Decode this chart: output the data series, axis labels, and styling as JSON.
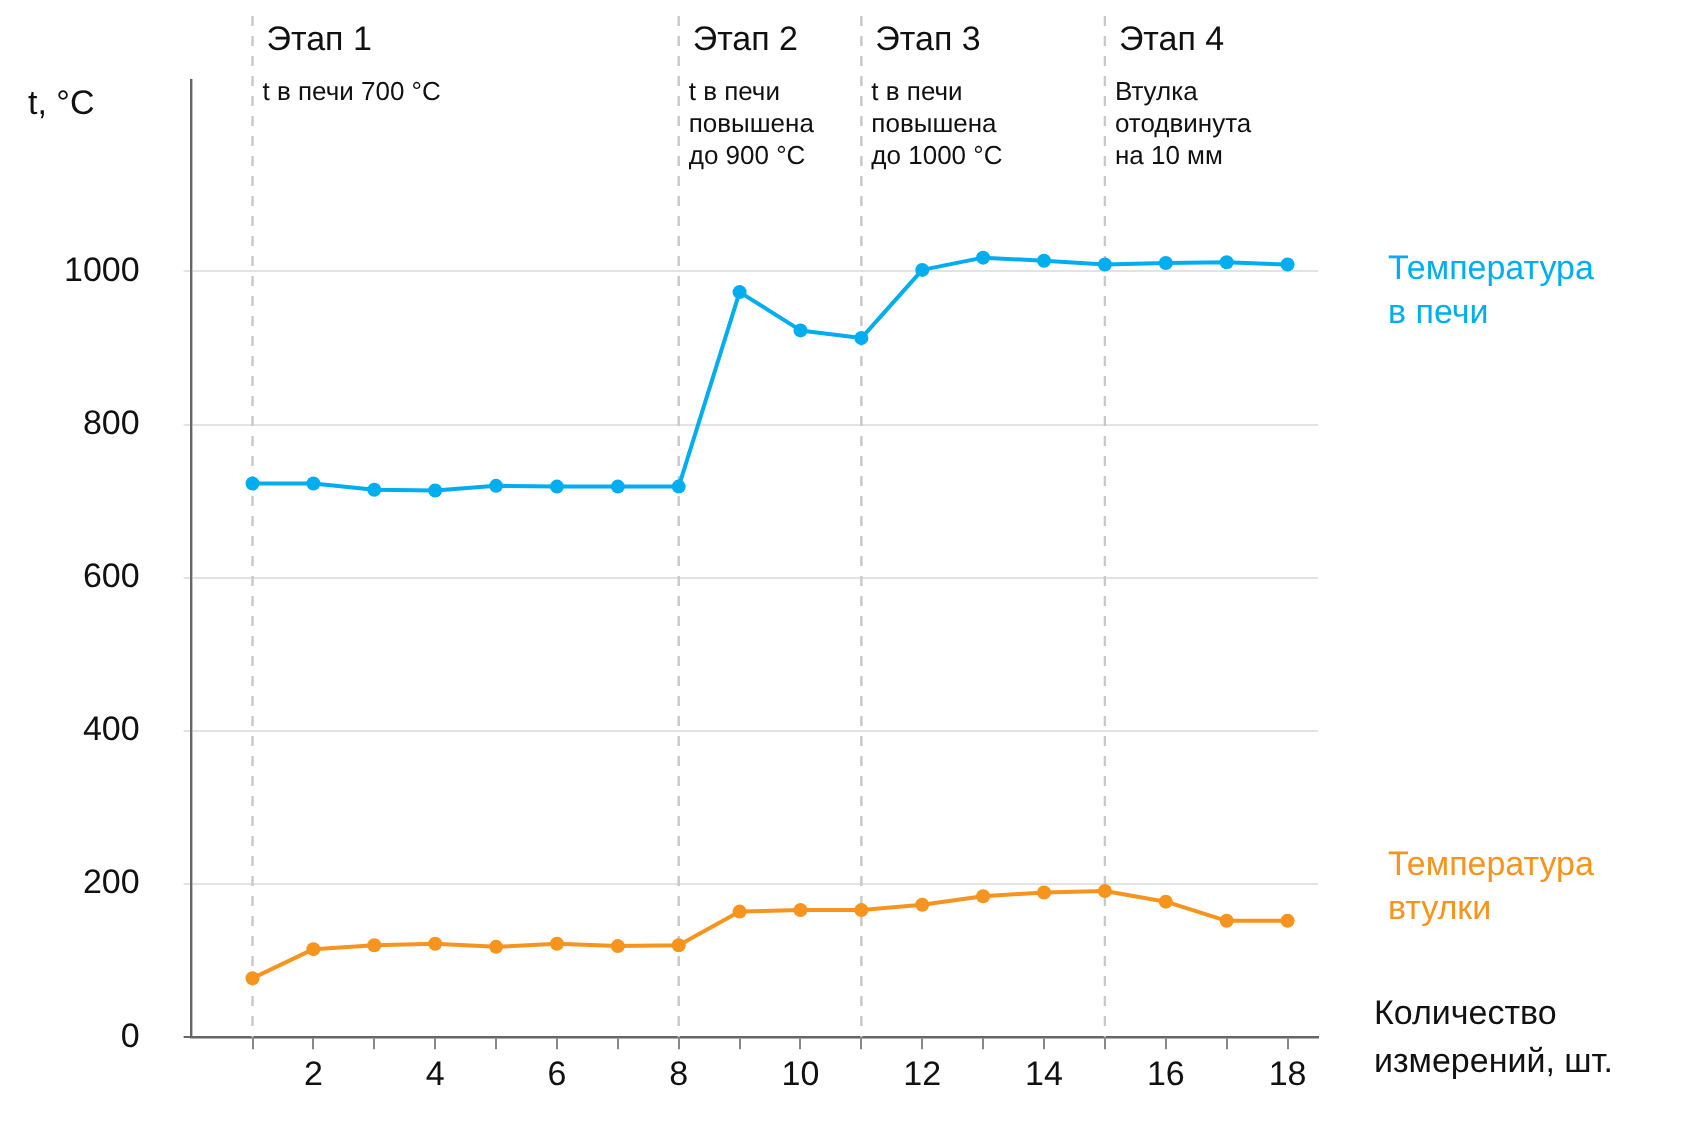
{
  "chart_data": {
    "type": "line",
    "ylabel": "t, °C",
    "xlabel": "Количество измерений, шт.",
    "x": [
      1,
      2,
      3,
      4,
      5,
      6,
      7,
      8,
      9,
      10,
      11,
      12,
      13,
      14,
      15,
      16,
      17,
      18
    ],
    "series": [
      {
        "name": "Температура в печи",
        "color": "#00aeef",
        "values": [
          723,
          723,
          715,
          714,
          720,
          719,
          719,
          719,
          973,
          923,
          913,
          1002,
          1018,
          1014,
          1009,
          1011,
          1012,
          1009
        ]
      },
      {
        "name": "Температура втулки",
        "color": "#f7941d",
        "values": [
          77,
          115,
          120,
          122,
          118,
          122,
          119,
          120,
          164,
          166,
          166,
          173,
          184,
          189,
          191,
          177,
          152,
          152
        ]
      }
    ],
    "xlim": [
      0,
      18.5
    ],
    "xticks": [
      {
        "value": 1,
        "label": null
      },
      2,
      {
        "value": 3,
        "label": null
      },
      4,
      {
        "value": 5,
        "label": null
      },
      6,
      {
        "value": 7,
        "label": null
      },
      8,
      {
        "value": 9,
        "label": null
      },
      10,
      {
        "value": 11,
        "label": null
      },
      12,
      {
        "value": 13,
        "label": null
      },
      14,
      {
        "value": 15,
        "label": null
      },
      16,
      {
        "value": 17,
        "label": null
      },
      18
    ],
    "ylim": [
      0,
      1250
    ],
    "yticks": [
      0,
      200,
      400,
      600,
      800,
      1000
    ],
    "grid": "y",
    "marker": "circle",
    "line_style": "solid",
    "legend": false,
    "ref_lines": [
      {
        "axis": "x",
        "value": 1,
        "label": "Этап 1",
        "color": "#c8c8c8",
        "line_style": "dashed"
      },
      {
        "axis": "x",
        "value": 8,
        "label": "Этап 2",
        "color": "#c8c8c8",
        "line_style": "dashed"
      },
      {
        "axis": "x",
        "value": 11,
        "label": "Этап 3",
        "color": "#c8c8c8",
        "line_style": "dashed"
      },
      {
        "axis": "x",
        "value": 15,
        "label": "Этап 4",
        "color": "#c8c8c8",
        "line_style": "dashed"
      }
    ],
    "annotations": [
      {
        "text": "t в печи 700 °C",
        "x": 1
      },
      {
        "text": "t в печи повышена до 900 °C",
        "x": 8
      },
      {
        "text": "t в печи повышена до 1000 °C",
        "x": 11
      },
      {
        "text": "Втулка отодвинута на 10 мм",
        "x": 15
      }
    ]
  }
}
